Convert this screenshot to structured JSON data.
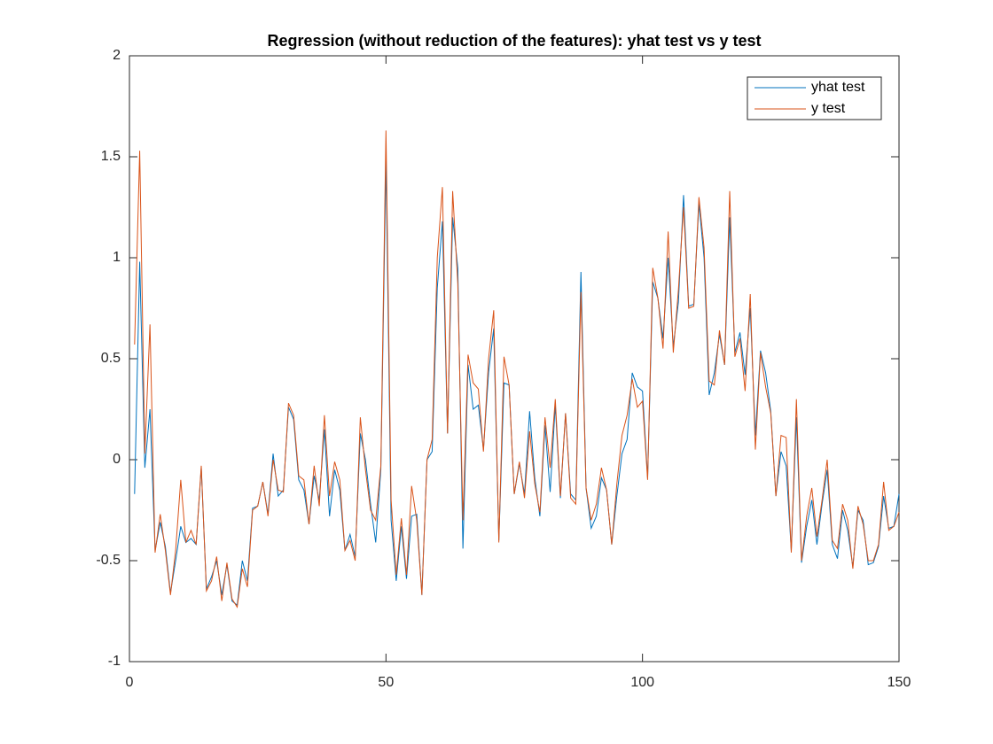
{
  "chart_data": {
    "type": "line",
    "title": "Regression (without reduction of the features): yhat test vs y test",
    "x": [
      1,
      2,
      3,
      4,
      5,
      6,
      7,
      8,
      9,
      10,
      11,
      12,
      13,
      14,
      15,
      16,
      17,
      18,
      19,
      20,
      21,
      22,
      23,
      24,
      25,
      26,
      27,
      28,
      29,
      30,
      31,
      32,
      33,
      34,
      35,
      36,
      37,
      38,
      39,
      40,
      41,
      42,
      43,
      44,
      45,
      46,
      47,
      48,
      49,
      50,
      51,
      52,
      53,
      54,
      55,
      56,
      57,
      58,
      59,
      60,
      61,
      62,
      63,
      64,
      65,
      66,
      67,
      68,
      69,
      70,
      71,
      72,
      73,
      74,
      75,
      76,
      77,
      78,
      79,
      80,
      81,
      82,
      83,
      84,
      85,
      86,
      87,
      88,
      89,
      90,
      91,
      92,
      93,
      94,
      95,
      96,
      97,
      98,
      99,
      100,
      101,
      102,
      103,
      104,
      105,
      106,
      107,
      108,
      109,
      110,
      111,
      112,
      113,
      114,
      115,
      116,
      117,
      118,
      119,
      120,
      121,
      122,
      123,
      124,
      125,
      126,
      127,
      128,
      129,
      130,
      131,
      132,
      133,
      134,
      135,
      136,
      137,
      138,
      139,
      140,
      141,
      142,
      143,
      144,
      145,
      146,
      147,
      148,
      149,
      150
    ],
    "series": [
      {
        "name": "yhat test",
        "color": "#0072bd",
        "values": [
          -0.17,
          0.98,
          -0.04,
          0.25,
          -0.45,
          -0.31,
          -0.43,
          -0.66,
          -0.5,
          -0.33,
          -0.41,
          -0.39,
          -0.42,
          -0.04,
          -0.64,
          -0.58,
          -0.5,
          -0.67,
          -0.52,
          -0.7,
          -0.72,
          -0.5,
          -0.6,
          -0.24,
          -0.23,
          -0.11,
          -0.27,
          0.03,
          -0.18,
          -0.15,
          0.26,
          0.2,
          -0.1,
          -0.15,
          -0.32,
          -0.08,
          -0.2,
          0.15,
          -0.28,
          -0.05,
          -0.15,
          -0.45,
          -0.37,
          -0.48,
          0.13,
          0,
          -0.22,
          -0.41,
          -0.05,
          1.48,
          -0.3,
          -0.6,
          -0.33,
          -0.59,
          -0.28,
          -0.27,
          -0.67,
          0,
          0.04,
          0.85,
          1.18,
          0.13,
          1.2,
          0.95,
          -0.44,
          0.47,
          0.25,
          0.27,
          0.05,
          0.43,
          0.65,
          -0.4,
          0.38,
          0.37,
          -0.17,
          -0.02,
          -0.17,
          0.24,
          -0.09,
          -0.28,
          0.17,
          -0.16,
          0.27,
          -0.19,
          0.23,
          -0.17,
          -0.2,
          0.93,
          -0.14,
          -0.34,
          -0.28,
          -0.09,
          -0.15,
          -0.42,
          -0.18,
          0.03,
          0.1,
          0.43,
          0.36,
          0.34,
          -0.09,
          0.88,
          0.8,
          0.6,
          1.0,
          0.56,
          0.78,
          1.31,
          0.76,
          0.77,
          1.27,
          1.0,
          0.32,
          0.43,
          0.62,
          0.47,
          1.2,
          0.53,
          0.63,
          0.42,
          0.75,
          0.12,
          0.54,
          0.43,
          0.24,
          -0.18,
          0.04,
          -0.03,
          -0.45,
          0.21,
          -0.51,
          -0.33,
          -0.2,
          -0.42,
          -0.22,
          -0.05,
          -0.42,
          -0.49,
          -0.25,
          -0.35,
          -0.53,
          -0.25,
          -0.3,
          -0.52,
          -0.51,
          -0.43,
          -0.18,
          -0.34,
          -0.33,
          -0.17
        ]
      },
      {
        "name": "y test",
        "color": "#d95319",
        "values": [
          0.57,
          1.53,
          0.03,
          0.67,
          -0.46,
          -0.27,
          -0.45,
          -0.67,
          -0.45,
          -0.1,
          -0.41,
          -0.35,
          -0.42,
          -0.03,
          -0.65,
          -0.6,
          -0.48,
          -0.7,
          -0.51,
          -0.69,
          -0.73,
          -0.54,
          -0.63,
          -0.25,
          -0.23,
          -0.11,
          -0.28,
          0,
          -0.15,
          -0.16,
          0.28,
          0.22,
          -0.08,
          -0.1,
          -0.32,
          -0.03,
          -0.23,
          0.22,
          -0.18,
          -0.01,
          -0.1,
          -0.45,
          -0.4,
          -0.5,
          0.21,
          -0.05,
          -0.25,
          -0.3,
          -0.03,
          1.63,
          -0.2,
          -0.57,
          -0.29,
          -0.57,
          -0.13,
          -0.3,
          -0.67,
          0,
          0.1,
          1.0,
          1.35,
          0.13,
          1.33,
          0.87,
          -0.3,
          0.52,
          0.38,
          0.35,
          0.04,
          0.5,
          0.74,
          -0.41,
          0.51,
          0.37,
          -0.17,
          -0.01,
          -0.19,
          0.14,
          -0.12,
          -0.26,
          0.21,
          -0.04,
          0.3,
          -0.18,
          0.23,
          -0.19,
          -0.22,
          0.83,
          -0.14,
          -0.3,
          -0.22,
          -0.04,
          -0.15,
          -0.42,
          -0.12,
          0.12,
          0.22,
          0.4,
          0.26,
          0.29,
          -0.1,
          0.95,
          0.8,
          0.55,
          1.13,
          0.53,
          0.84,
          1.25,
          0.75,
          0.76,
          1.3,
          1.05,
          0.39,
          0.37,
          0.64,
          0.47,
          1.33,
          0.51,
          0.6,
          0.34,
          0.82,
          0.05,
          0.53,
          0.36,
          0.23,
          -0.18,
          0.12,
          0.11,
          -0.46,
          0.3,
          -0.5,
          -0.28,
          -0.14,
          -0.38,
          -0.2,
          0,
          -0.4,
          -0.44,
          -0.22,
          -0.3,
          -0.54,
          -0.23,
          -0.32,
          -0.5,
          -0.5,
          -0.42,
          -0.11,
          -0.35,
          -0.33,
          -0.26
        ]
      }
    ],
    "xlim": [
      0,
      150
    ],
    "xticks": [
      0,
      50,
      100,
      150
    ],
    "ylim": [
      -1,
      2
    ],
    "yticks": [
      -1,
      -0.5,
      0,
      0.5,
      1,
      1.5,
      2
    ],
    "grid": false,
    "legend": "northeast"
  }
}
